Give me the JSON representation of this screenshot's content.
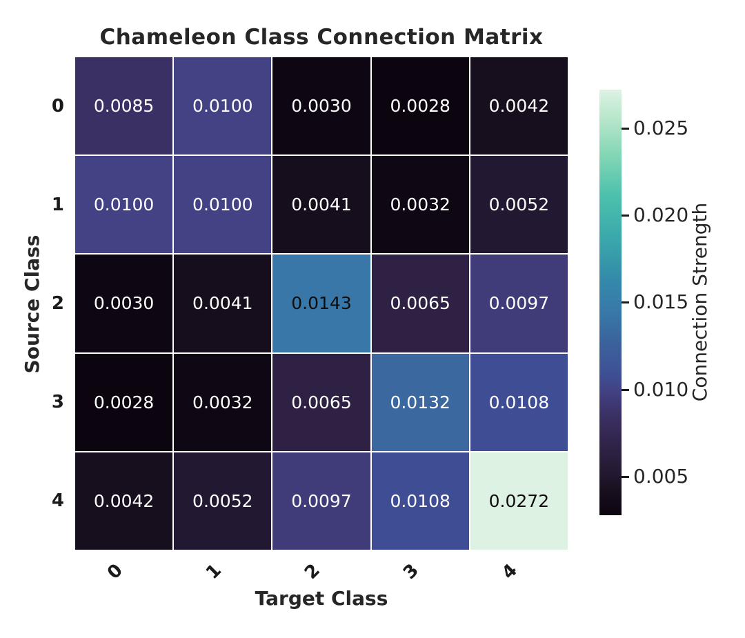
{
  "title": "Chameleon Class Connection Matrix",
  "chart_data": {
    "type": "heatmap",
    "title": "Chameleon Class Connection Matrix",
    "xlabel": "Target Class",
    "ylabel": "Source Class",
    "x_categories": [
      "0",
      "1",
      "2",
      "3",
      "4"
    ],
    "y_categories": [
      "0",
      "1",
      "2",
      "3",
      "4"
    ],
    "values": [
      [
        0.0085,
        0.01,
        0.003,
        0.0028,
        0.0042
      ],
      [
        0.01,
        0.01,
        0.0041,
        0.0032,
        0.0052
      ],
      [
        0.003,
        0.0041,
        0.0143,
        0.0065,
        0.0097
      ],
      [
        0.0028,
        0.0032,
        0.0065,
        0.0132,
        0.0108
      ],
      [
        0.0042,
        0.0052,
        0.0097,
        0.0108,
        0.0272
      ]
    ],
    "value_decimals": 4,
    "vmin": 0.0028,
    "vmax": 0.0272,
    "colormap": "mako",
    "grid_line_color": "#ffffff",
    "annotation_colors": {
      "on_dark": "#ffffff",
      "on_light": "#0d0d0d"
    },
    "cell_colors": [
      [
        "#3b3064",
        "#424285",
        "#0e0613",
        "#0c0510",
        "#180f1e"
      ],
      [
        "#424285",
        "#424285",
        "#170e1d",
        "#100714",
        "#231831"
      ],
      [
        "#0e0613",
        "#170e1d",
        "#3877a8",
        "#2e2144",
        "#403c79"
      ],
      [
        "#0c0510",
        "#100714",
        "#2e2144",
        "#3a689f",
        "#3f4e94"
      ],
      [
        "#180f1e",
        "#231831",
        "#403c79",
        "#3f4e94",
        "#def2e4"
      ]
    ],
    "cell_text_colors": [
      [
        "#ffffff",
        "#ffffff",
        "#ffffff",
        "#ffffff",
        "#ffffff"
      ],
      [
        "#ffffff",
        "#ffffff",
        "#ffffff",
        "#ffffff",
        "#ffffff"
      ],
      [
        "#ffffff",
        "#ffffff",
        "#0d0d0d",
        "#ffffff",
        "#ffffff"
      ],
      [
        "#ffffff",
        "#ffffff",
        "#ffffff",
        "#ffffff",
        "#ffffff"
      ],
      [
        "#ffffff",
        "#ffffff",
        "#ffffff",
        "#ffffff",
        "#0d0d0d"
      ]
    ],
    "colorbar": {
      "label": "Connection Strength",
      "position": "right",
      "tick_labels_top_to_bottom": [
        "0.025",
        "0.020",
        "0.015",
        "0.010",
        "0.005"
      ],
      "gradient_bottom_to_top": [
        {
          "pos": 0.0,
          "color": "#0c0510"
        },
        {
          "pos": 0.057,
          "color": "#180f1e"
        },
        {
          "pos": 0.098,
          "color": "#231831"
        },
        {
          "pos": 0.152,
          "color": "#2e2144"
        },
        {
          "pos": 0.234,
          "color": "#3b3064"
        },
        {
          "pos": 0.295,
          "color": "#424285"
        },
        {
          "pos": 0.328,
          "color": "#3f4e94"
        },
        {
          "pos": 0.426,
          "color": "#3a689f"
        },
        {
          "pos": 0.471,
          "color": "#3877a8"
        },
        {
          "pos": 0.55,
          "color": "#3489aa"
        },
        {
          "pos": 0.65,
          "color": "#3aa8ab"
        },
        {
          "pos": 0.75,
          "color": "#4cc0ad"
        },
        {
          "pos": 0.85,
          "color": "#85d7b5"
        },
        {
          "pos": 0.93,
          "color": "#b6e6cb"
        },
        {
          "pos": 1.0,
          "color": "#def2e4"
        }
      ]
    }
  }
}
